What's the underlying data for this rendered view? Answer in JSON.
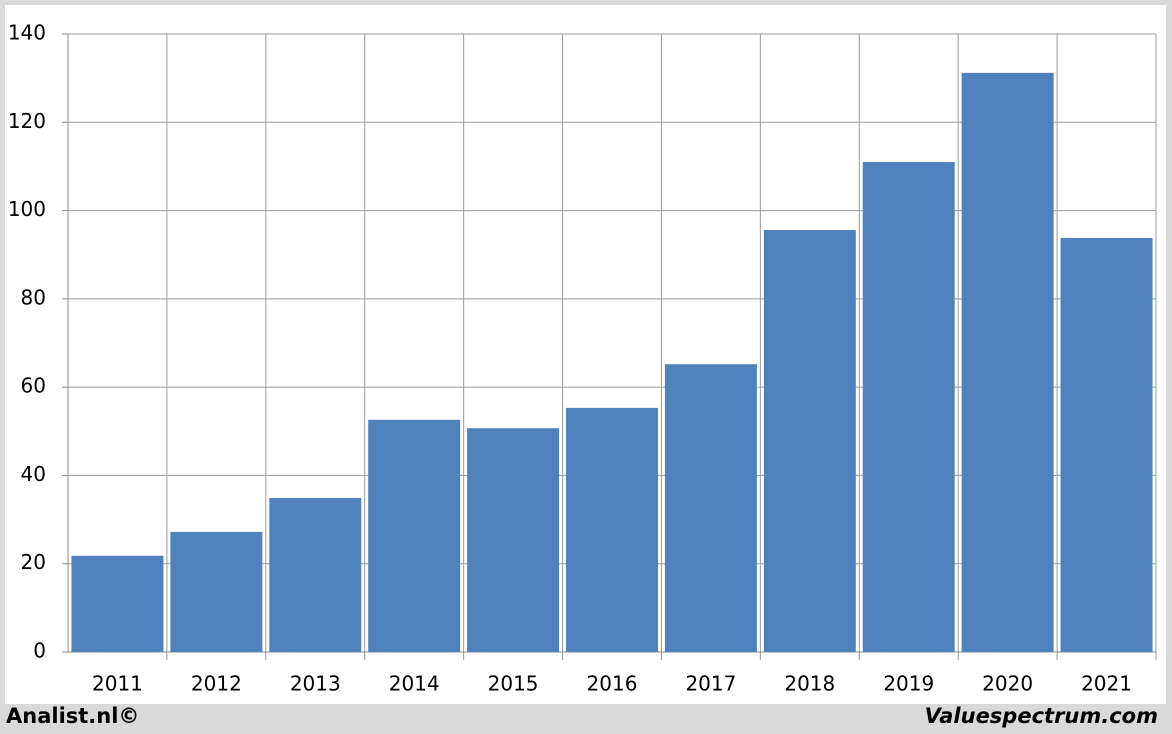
{
  "chart_data": {
    "type": "bar",
    "categories": [
      "2011",
      "2012",
      "2013",
      "2014",
      "2015",
      "2016",
      "2017",
      "2018",
      "2019",
      "2020",
      "2021"
    ],
    "values": [
      21.8,
      27.2,
      34.9,
      52.6,
      50.7,
      55.3,
      65.2,
      95.6,
      111,
      131.2,
      93.8
    ],
    "color": "#4f81bd",
    "ylim": [
      0,
      140
    ],
    "yticks": [
      0,
      20,
      40,
      60,
      80,
      100,
      120,
      140
    ],
    "grid": true,
    "annotations": [
      "Analist.nl©",
      "Valuespectrum.com"
    ]
  }
}
